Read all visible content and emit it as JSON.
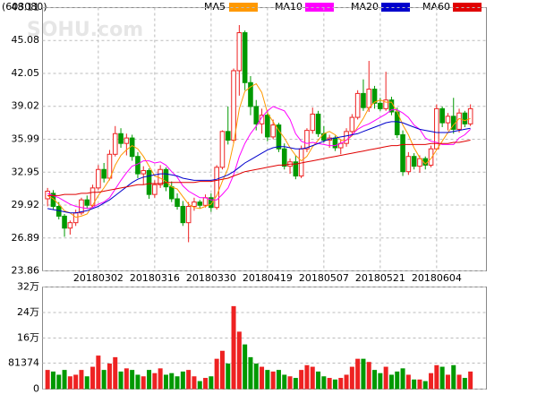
{
  "chart_data": {
    "type": "candlestick",
    "code": "(603080)",
    "watermark": "SOHU.com",
    "categories": [
      null,
      null,
      null,
      null,
      null,
      null,
      null,
      null,
      null,
      "20180302",
      null,
      null,
      null,
      null,
      null,
      null,
      null,
      null,
      null,
      "20180316",
      null,
      null,
      null,
      null,
      null,
      null,
      null,
      null,
      null,
      "20180330",
      null,
      null,
      null,
      null,
      null,
      null,
      null,
      null,
      null,
      "20180419",
      null,
      null,
      null,
      null,
      null,
      null,
      null,
      null,
      null,
      "20180507",
      null,
      null,
      null,
      null,
      null,
      null,
      null,
      null,
      null,
      "20180521",
      null,
      null,
      null,
      null,
      null,
      null,
      null,
      null,
      null,
      "20180604",
      null,
      null,
      null,
      null,
      null,
      null
    ],
    "open": [
      30.5,
      31.0,
      29.8,
      28.9,
      27.8,
      28.3,
      29.2,
      30.4,
      29.9,
      31.5,
      33.2,
      32.4,
      34.6,
      36.5,
      35.6,
      36.1,
      34.4,
      32.8,
      33.1,
      30.9,
      31.8,
      33.2,
      31.6,
      30.5,
      29.8,
      28.3,
      29.8,
      30.2,
      29.9,
      30.6,
      29.7,
      33.4,
      36.7,
      35.9,
      42.3,
      45.8,
      41.2,
      39.0,
      37.4,
      38.2,
      36.2,
      37.3,
      35.1,
      33.5,
      33.9,
      32.6,
      35.1,
      36.8,
      38.3,
      36.5,
      35.9,
      36.1,
      35.2,
      35.6,
      36.7,
      38.0,
      40.2,
      38.9,
      40.6,
      39.3,
      38.8,
      39.6,
      38.5,
      36.4,
      33.0,
      34.4,
      33.5,
      34.2,
      33.6,
      35.1,
      38.8,
      37.5,
      38.1,
      36.9,
      38.4,
      37.4
    ],
    "high": [
      31.5,
      31.3,
      30.2,
      29.1,
      28.5,
      29.5,
      30.6,
      30.8,
      31.8,
      33.6,
      33.8,
      35.0,
      37.2,
      37.0,
      36.5,
      36.4,
      34.8,
      33.5,
      33.3,
      32.2,
      33.6,
      33.4,
      32.1,
      31.0,
      30.3,
      30.2,
      30.6,
      30.4,
      30.9,
      31.0,
      33.6,
      36.8,
      39.0,
      42.5,
      46.5,
      46.0,
      41.8,
      39.6,
      38.8,
      38.6,
      37.8,
      37.5,
      35.6,
      34.2,
      34.5,
      35.4,
      37.0,
      38.9,
      38.6,
      37.2,
      36.4,
      36.3,
      36.0,
      37.0,
      38.3,
      40.5,
      41.5,
      43.2,
      40.9,
      39.8,
      42.2,
      39.9,
      38.9,
      36.8,
      34.8,
      34.7,
      34.5,
      34.4,
      35.4,
      39.2,
      39.0,
      38.4,
      39.8,
      38.8,
      38.6,
      39.2
    ],
    "low": [
      29.8,
      29.5,
      28.6,
      27.0,
      27.2,
      28.0,
      29.0,
      29.6,
      29.7,
      31.3,
      32.0,
      32.2,
      34.4,
      35.2,
      34.5,
      34.0,
      32.4,
      31.8,
      30.5,
      30.6,
      31.5,
      31.2,
      30.2,
      29.5,
      28.0,
      26.5,
      29.4,
      29.6,
      29.7,
      29.3,
      29.5,
      33.2,
      35.5,
      35.6,
      40.0,
      40.5,
      38.2,
      36.8,
      36.5,
      35.8,
      36.0,
      34.8,
      33.2,
      32.8,
      32.3,
      32.4,
      34.8,
      36.5,
      36.2,
      35.7,
      35.2,
      34.9,
      34.6,
      35.3,
      36.4,
      37.8,
      38.6,
      38.5,
      38.8,
      38.6,
      38.6,
      38.2,
      36.1,
      32.6,
      32.7,
      33.2,
      32.9,
      33.2,
      33.4,
      35.0,
      37.1,
      36.8,
      36.5,
      36.6,
      37.1,
      37.2
    ],
    "close": [
      31.2,
      29.8,
      28.9,
      27.8,
      28.3,
      29.2,
      30.4,
      29.9,
      31.5,
      33.2,
      32.4,
      34.6,
      36.5,
      35.6,
      36.1,
      34.4,
      32.8,
      33.1,
      30.9,
      31.8,
      33.2,
      31.6,
      30.5,
      29.8,
      28.3,
      29.8,
      30.2,
      29.9,
      30.6,
      29.7,
      33.4,
      36.7,
      35.9,
      42.3,
      45.8,
      41.2,
      39.0,
      37.4,
      38.2,
      36.2,
      37.3,
      35.1,
      33.5,
      33.9,
      32.6,
      35.1,
      36.8,
      38.3,
      36.5,
      35.9,
      36.1,
      35.2,
      35.6,
      36.7,
      38.0,
      40.2,
      38.9,
      40.6,
      39.3,
      38.8,
      39.6,
      38.5,
      36.4,
      33.0,
      34.4,
      33.5,
      34.2,
      33.6,
      35.1,
      38.8,
      37.5,
      38.1,
      36.9,
      38.4,
      37.4,
      38.8
    ],
    "volume": [
      60000,
      55000,
      45000,
      60000,
      40000,
      45000,
      60000,
      40000,
      70000,
      105000,
      60000,
      80000,
      100000,
      55000,
      65000,
      60000,
      45000,
      40000,
      60000,
      50000,
      65000,
      45000,
      50000,
      40000,
      55000,
      60000,
      40000,
      25000,
      35000,
      40000,
      95000,
      120000,
      80000,
      260000,
      180000,
      140000,
      100000,
      80000,
      70000,
      60000,
      55000,
      60000,
      45000,
      40000,
      35000,
      60000,
      75000,
      70000,
      55000,
      40000,
      35000,
      30000,
      35000,
      45000,
      70000,
      95000,
      95000,
      85000,
      60000,
      50000,
      70000,
      45000,
      55000,
      65000,
      45000,
      30000,
      30000,
      25000,
      50000,
      75000,
      70000,
      45000,
      75000,
      45000,
      35000,
      55000
    ],
    "up_color": "#ee2222",
    "down_color": "#009900",
    "series": [
      {
        "name": "MA5",
        "color": "#ff9900",
        "values": [
          30.8,
          30.5,
          30.0,
          29.4,
          29.2,
          28.8,
          28.9,
          29.1,
          29.9,
          30.8,
          31.5,
          32.3,
          33.6,
          34.5,
          35.0,
          35.4,
          35.1,
          34.4,
          33.5,
          32.6,
          32.4,
          32.1,
          31.6,
          31.4,
          30.7,
          30.0,
          29.7,
          29.6,
          29.8,
          30.0,
          30.8,
          32.1,
          33.3,
          35.6,
          38.8,
          40.4,
          40.8,
          41.1,
          40.3,
          38.4,
          37.6,
          36.8,
          36.1,
          35.2,
          34.5,
          34.0,
          34.4,
          35.3,
          35.9,
          36.5,
          36.7,
          36.4,
          35.9,
          35.9,
          36.3,
          37.1,
          37.9,
          38.9,
          39.4,
          39.6,
          39.4,
          39.4,
          38.5,
          37.3,
          36.4,
          35.2,
          34.3,
          33.7,
          34.2,
          35.0,
          35.8,
          36.6,
          37.3,
          37.9,
          37.7,
          37.9
        ]
      },
      {
        "name": "MA10",
        "color": "#ff00ff",
        "values": [
          31.0,
          30.8,
          30.6,
          30.3,
          30.0,
          29.8,
          29.7,
          29.6,
          29.7,
          30.0,
          30.2,
          30.6,
          31.4,
          32.2,
          32.9,
          33.5,
          33.7,
          34.0,
          34.0,
          33.8,
          33.9,
          33.6,
          33.0,
          32.5,
          31.7,
          31.2,
          30.9,
          30.6,
          30.6,
          30.4,
          30.4,
          30.9,
          31.5,
          32.7,
          34.4,
          35.6,
          36.5,
          37.2,
          38.0,
          38.6,
          39.0,
          38.8,
          38.6,
          37.8,
          36.5,
          35.8,
          35.6,
          35.7,
          35.6,
          35.5,
          35.4,
          35.4,
          35.6,
          35.9,
          36.4,
          36.9,
          37.2,
          37.4,
          37.7,
          38.0,
          38.3,
          38.7,
          38.7,
          38.4,
          38.0,
          37.3,
          36.9,
          36.1,
          35.8,
          35.7,
          35.5,
          35.5,
          35.5,
          36.1,
          36.4,
          36.9
        ]
      },
      {
        "name": "MA20",
        "color": "#0000cc",
        "values": [
          29.6,
          29.5,
          29.4,
          29.3,
          29.2,
          29.2,
          29.3,
          29.4,
          29.6,
          29.8,
          30.1,
          30.4,
          30.8,
          31.2,
          31.6,
          32.0,
          32.3,
          32.5,
          32.6,
          32.7,
          32.8,
          32.8,
          32.7,
          32.6,
          32.4,
          32.3,
          32.2,
          32.2,
          32.2,
          32.2,
          32.3,
          32.5,
          32.7,
          33.0,
          33.4,
          33.8,
          34.1,
          34.4,
          34.7,
          35.0,
          35.2,
          35.3,
          35.3,
          35.2,
          35.1,
          35.1,
          35.2,
          35.4,
          35.6,
          35.8,
          36.0,
          36.1,
          36.2,
          36.3,
          36.4,
          36.5,
          36.7,
          36.9,
          37.1,
          37.3,
          37.5,
          37.6,
          37.6,
          37.5,
          37.3,
          37.1,
          36.9,
          36.8,
          36.7,
          36.6,
          36.6,
          36.6,
          36.7,
          36.8,
          36.9,
          37.0
        ]
      },
      {
        "name": "MA60",
        "color": "#e00000",
        "values": [
          30.8,
          30.8,
          30.8,
          30.9,
          30.9,
          30.9,
          31.0,
          31.0,
          31.1,
          31.1,
          31.2,
          31.3,
          31.4,
          31.5,
          31.6,
          31.7,
          31.8,
          31.8,
          31.9,
          31.9,
          31.9,
          32.0,
          32.0,
          32.0,
          32.0,
          32.0,
          32.0,
          32.1,
          32.1,
          32.1,
          32.2,
          32.3,
          32.4,
          32.6,
          32.8,
          33.0,
          33.1,
          33.2,
          33.3,
          33.4,
          33.5,
          33.6,
          33.6,
          33.7,
          33.7,
          33.8,
          33.9,
          34.0,
          34.1,
          34.2,
          34.3,
          34.4,
          34.5,
          34.6,
          34.7,
          34.8,
          34.9,
          35.0,
          35.1,
          35.2,
          35.3,
          35.4,
          35.4,
          35.5,
          35.5,
          35.5,
          35.5,
          35.5,
          35.6,
          35.6,
          35.6,
          35.6,
          35.7,
          35.7,
          35.8,
          35.9
        ]
      }
    ],
    "ylim": [
      23.86,
      48.11
    ],
    "yticks": [
      23.86,
      26.89,
      29.92,
      32.95,
      35.99,
      39.02,
      42.05,
      45.08,
      48.11
    ],
    "volume_ylim": [
      0,
      320000
    ],
    "volume_yticks": [
      0,
      81374,
      {
        "value": 160000,
        "label": "16万"
      },
      {
        "value": 240000,
        "label": "24万"
      },
      {
        "value": 320000,
        "label": "32万"
      }
    ],
    "grid": true
  }
}
